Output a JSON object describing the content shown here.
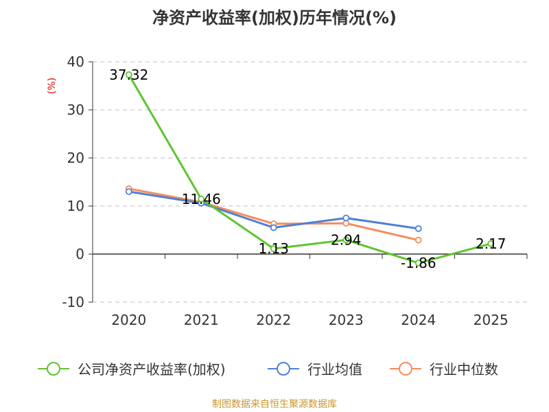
{
  "title": "净资产收益率(加权)历年情况(%)",
  "source": "制图数据来自恒生聚源数据库",
  "chart_data": {
    "type": "line",
    "title": "净资产收益率(加权)历年情况(%)",
    "ylabel": "(%)",
    "ylim": [
      -10,
      40
    ],
    "yticks": [
      -10,
      0,
      10,
      20,
      30,
      40
    ],
    "grid": true,
    "legend_position": "bottom",
    "categories": [
      "2020",
      "2021",
      "2022",
      "2023",
      "2024",
      "2025"
    ],
    "series": [
      {
        "name": "公司净资产收益率(加权)",
        "color": "#5ec42f",
        "values": [
          37.32,
          11.46,
          1.13,
          2.94,
          -1.86,
          2.17
        ],
        "labels": [
          "37.32",
          "11.46",
          "1.13",
          "2.94",
          "-1.86",
          "2.17"
        ]
      },
      {
        "name": "行业均值",
        "color": "#4f7fd8",
        "values": [
          13.0,
          10.6,
          5.5,
          7.5,
          5.3,
          null
        ]
      },
      {
        "name": "行业中位数",
        "color": "#f58c5a",
        "values": [
          13.6,
          10.8,
          6.3,
          6.4,
          2.9,
          null
        ]
      }
    ]
  }
}
